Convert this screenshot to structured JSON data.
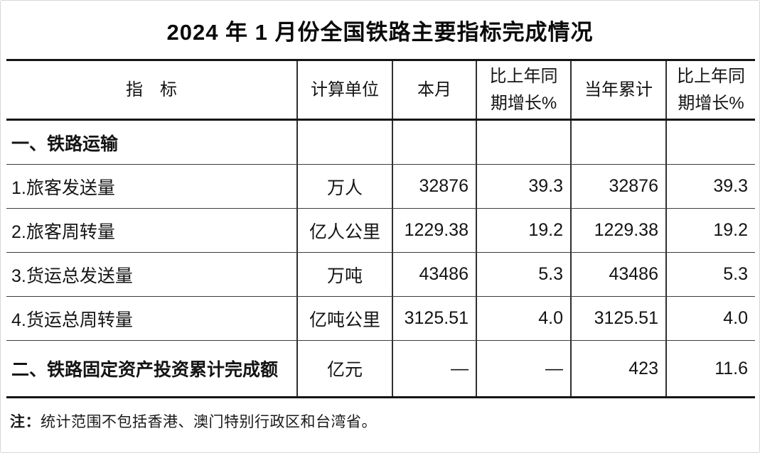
{
  "title": "2024 年 1 月份全国铁路主要指标完成情况",
  "table": {
    "headers": {
      "indicator": "指　标",
      "unit": "计算单位",
      "month": "本月",
      "month_growth": "比上年同\n期增长%",
      "cumulative": "当年累计",
      "cumulative_growth": "比上年同\n期增长%"
    },
    "rows": [
      {
        "indicator": "一、铁路运输",
        "unit": "",
        "month": "",
        "month_growth": "",
        "cumulative": "",
        "cumulative_growth": ""
      },
      {
        "indicator": "1.旅客发送量",
        "unit": "万人",
        "month": "32876",
        "month_growth": "39.3",
        "cumulative": "32876",
        "cumulative_growth": "39.3"
      },
      {
        "indicator": "2.旅客周转量",
        "unit": "亿人公里",
        "month": "1229.38",
        "month_growth": "19.2",
        "cumulative": "1229.38",
        "cumulative_growth": "19.2"
      },
      {
        "indicator": "3.货运总发送量",
        "unit": "万吨",
        "month": "43486",
        "month_growth": "5.3",
        "cumulative": "43486",
        "cumulative_growth": "5.3"
      },
      {
        "indicator": "4.货运总周转量",
        "unit": "亿吨公里",
        "month": "3125.51",
        "month_growth": "4.0",
        "cumulative": "3125.51",
        "cumulative_growth": "4.0"
      },
      {
        "indicator": "二、铁路固定资产投资累计完成额",
        "unit": "亿元",
        "month": "—",
        "month_growth": "—",
        "cumulative": "423",
        "cumulative_growth": "11.6"
      }
    ]
  },
  "note": {
    "label": "注：",
    "text": "统计范围不包括香港、澳门特别行政区和台湾省。"
  }
}
